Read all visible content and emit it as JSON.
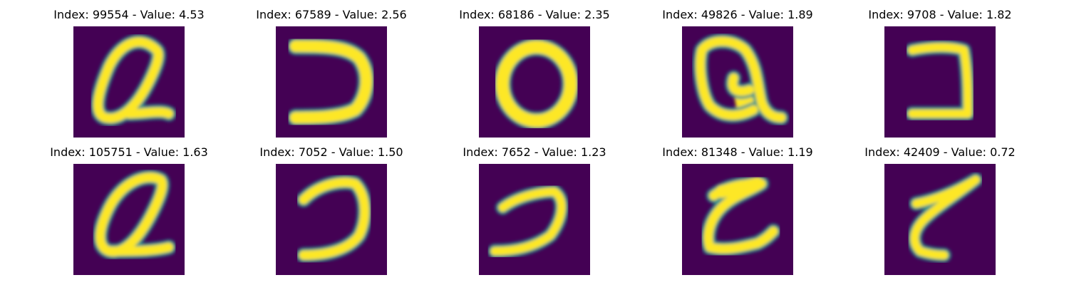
{
  "figure": {
    "background": "#ffffff",
    "image_background_color": "#440154",
    "stroke_edge_color": "#21918c",
    "stroke_core_color": "#fde725",
    "stroke_mid_color": "#5ec962"
  },
  "panels": [
    {
      "index": "99554",
      "value": "4.53",
      "title": "Index: 99554 - Value: 4.53",
      "glyph": "handwritten-q-like-loop"
    },
    {
      "index": "67589",
      "value": "2.56",
      "title": "Index: 67589 - Value: 2.56",
      "glyph": "handwritten-reversed-c"
    },
    {
      "index": "68186",
      "value": "2.35",
      "title": "Index: 68186 - Value: 2.35",
      "glyph": "handwritten-o-ring"
    },
    {
      "index": "49826",
      "value": "1.89",
      "title": "Index: 49826 - Value: 1.89",
      "glyph": "handwritten-q-filled"
    },
    {
      "index": "9708",
      "value": "1.82",
      "title": "Index: 9708 - Value: 1.82",
      "glyph": "handwritten-bracket"
    },
    {
      "index": "105751",
      "value": "1.63",
      "title": "Index: 105751 - Value: 1.63",
      "glyph": "handwritten-q-like-loop"
    },
    {
      "index": "7052",
      "value": "1.50",
      "title": "Index: 7052 - Value: 1.50",
      "glyph": "handwritten-reversed-c"
    },
    {
      "index": "7652",
      "value": "1.23",
      "title": "Index: 7652 - Value: 1.23",
      "glyph": "handwritten-reversed-c"
    },
    {
      "index": "81348",
      "value": "1.19",
      "title": "Index: 81348 - Value: 1.19",
      "glyph": "handwritten-z-like"
    },
    {
      "index": "42409",
      "value": "0.72",
      "title": "Index: 42409 - Value: 0.72",
      "glyph": "handwritten-z-like"
    }
  ]
}
